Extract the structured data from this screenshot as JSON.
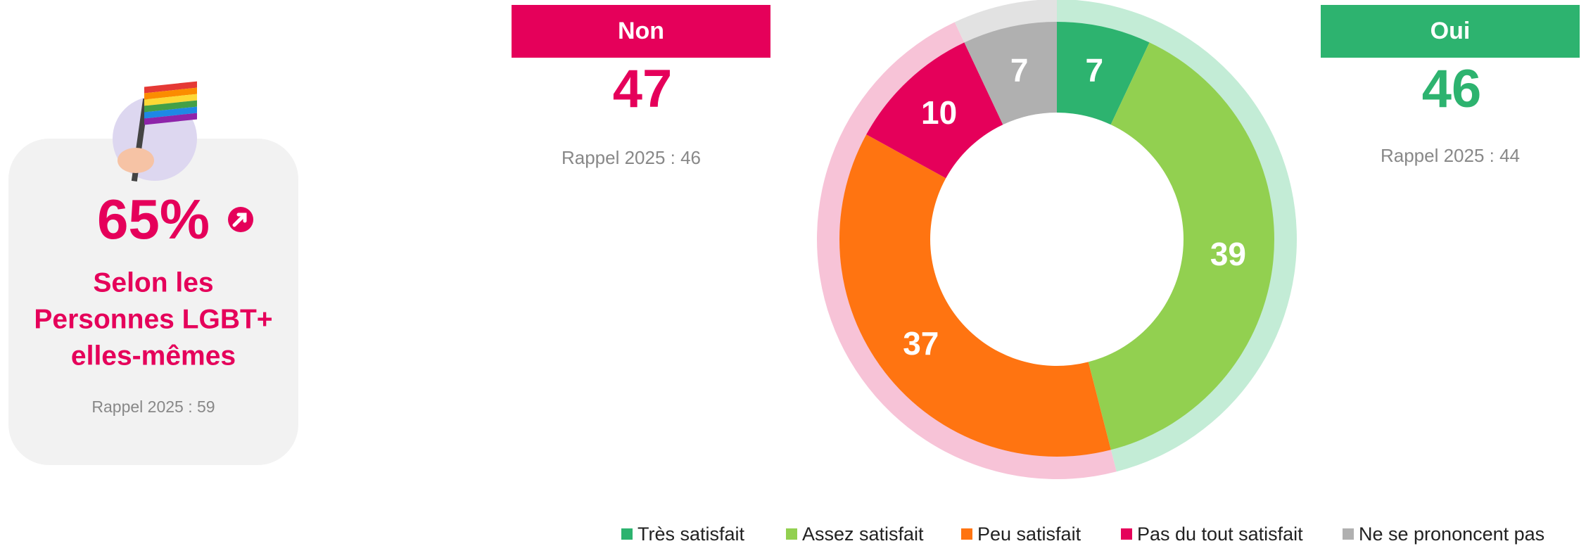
{
  "card": {
    "value": "65%",
    "caption": [
      "Selon les",
      "Personnes LGBT+",
      "elles-mêmes"
    ],
    "recall": "Rappel 2025 : 59"
  },
  "panels": {
    "non": {
      "label": "Non",
      "value": 47,
      "recall": "Rappel 2025 : 46",
      "color": "#e5005a"
    },
    "oui": {
      "label": "Oui",
      "value": 46,
      "recall": "Rappel 2025 : 44",
      "color": "#2db36f"
    }
  },
  "chart_data": {
    "type": "donut",
    "categories": [
      "Très satisfait",
      "Assez satisfait",
      "Peu satisfait",
      "Pas du tout satisfait",
      "Ne se prononcent pas"
    ],
    "values": [
      7,
      39,
      37,
      10,
      7
    ],
    "colors": [
      "#2db36f",
      "#92d050",
      "#ff7411",
      "#e5005a",
      "#b0b0b0"
    ],
    "legend": "bottom"
  }
}
